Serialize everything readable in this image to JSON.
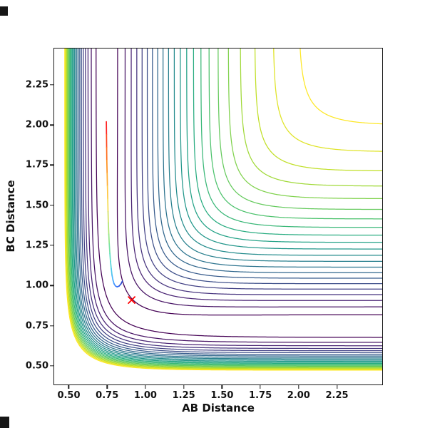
{
  "chart_data": {
    "type": "contour",
    "title": "",
    "xlabel": "AB Distance",
    "ylabel": "BC Distance",
    "x_range": [
      0.4,
      2.55
    ],
    "y_range": [
      0.38,
      2.48
    ],
    "x_ticks": [
      0.5,
      0.75,
      1.0,
      1.25,
      1.5,
      1.75,
      2.0,
      2.25
    ],
    "x_tick_labels": [
      "0.50",
      "0.75",
      "1.00",
      "1.25",
      "1.50",
      "1.75",
      "2.00",
      "2.25"
    ],
    "y_ticks": [
      0.5,
      0.75,
      1.0,
      1.25,
      1.5,
      1.75,
      2.0,
      2.25
    ],
    "y_tick_labels": [
      "0.50",
      "0.75",
      "1.00",
      "1.25",
      "1.50",
      "1.75",
      "2.00",
      "2.25"
    ],
    "grid": false,
    "legend": null,
    "contour": {
      "surface_model": {
        "type": "LEPS",
        "D": 4.746,
        "alpha": 2.5,
        "r0": 0.742,
        "sato": 0.18
      },
      "levels": [
        -4.6,
        -4.4,
        -4.2,
        -4.0,
        -3.8,
        -3.6,
        -3.4,
        -3.2,
        -3.0,
        -2.8,
        -2.6,
        -2.4,
        -2.2,
        -2.0,
        -1.8,
        -1.6,
        -1.4,
        -1.2,
        -1.0,
        -0.8,
        -0.6,
        -0.4
      ],
      "colormap": "viridis",
      "colormap_stops": [
        "#440154",
        "#482475",
        "#414487",
        "#355f8d",
        "#2a788e",
        "#21918c",
        "#22a884",
        "#44bf70",
        "#7ad151",
        "#bddf26",
        "#fde725"
      ],
      "line_width": 1.25,
      "grid_n": 220
    },
    "trajectory": {
      "points": [
        [
          0.745,
          2.02
        ],
        [
          0.746,
          1.94
        ],
        [
          0.747,
          1.86
        ],
        [
          0.748,
          1.78
        ],
        [
          0.75,
          1.7
        ],
        [
          0.752,
          1.62
        ],
        [
          0.754,
          1.54
        ],
        [
          0.756,
          1.46
        ],
        [
          0.758,
          1.39
        ],
        [
          0.761,
          1.32
        ],
        [
          0.764,
          1.26
        ],
        [
          0.768,
          1.2
        ],
        [
          0.772,
          1.15
        ],
        [
          0.777,
          1.105
        ],
        [
          0.782,
          1.065
        ],
        [
          0.788,
          1.035
        ],
        [
          0.795,
          1.012
        ],
        [
          0.804,
          0.998
        ],
        [
          0.815,
          0.992
        ],
        [
          0.828,
          0.997
        ],
        [
          0.84,
          1.01
        ],
        [
          0.85,
          1.028
        ]
      ],
      "colormap_stops": [
        "#ff2020",
        "#ff8c1a",
        "#ffd94d",
        "#9be87a",
        "#55dbd0",
        "#49b6ff",
        "#3a7bff",
        "#2746cc"
      ],
      "line_width": 1.7
    },
    "marker": {
      "x": 0.91,
      "y": 0.91,
      "symbol": "x",
      "color": "#ff0000",
      "size": 9
    }
  }
}
